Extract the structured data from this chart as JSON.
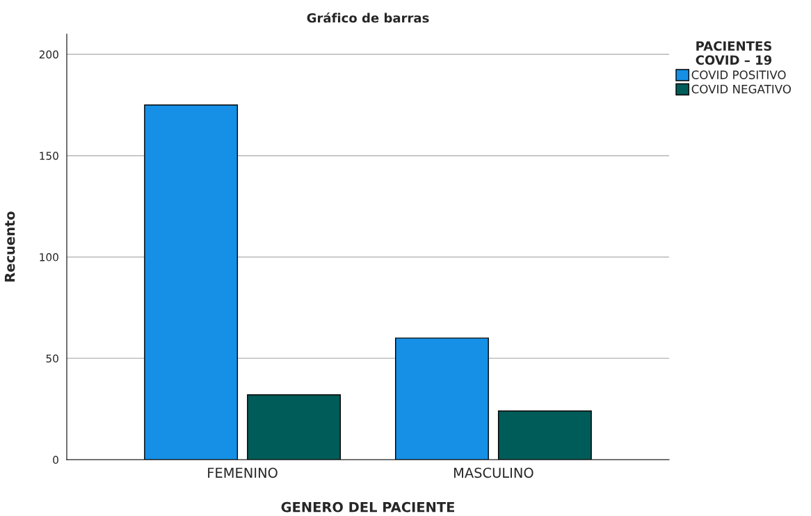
{
  "chart_data": {
    "type": "bar",
    "title": "Gráfico de barras",
    "xlabel": "GENERO DEL PACIENTE",
    "ylabel": "Recuento",
    "legend_title": "PACIENTES\nCOVID – 19",
    "categories": [
      "FEMENINO",
      "MASCULINO"
    ],
    "series": [
      {
        "name": "COVID POSITIVO",
        "color": "#1590e6",
        "values": [
          175,
          60
        ]
      },
      {
        "name": "COVID NEGATIVO",
        "color": "#005c58",
        "values": [
          32,
          24
        ]
      }
    ],
    "ylim": [
      0,
      210
    ],
    "yticks": [
      0,
      50,
      100,
      150,
      200
    ],
    "grid": "y",
    "legend": "top right"
  }
}
